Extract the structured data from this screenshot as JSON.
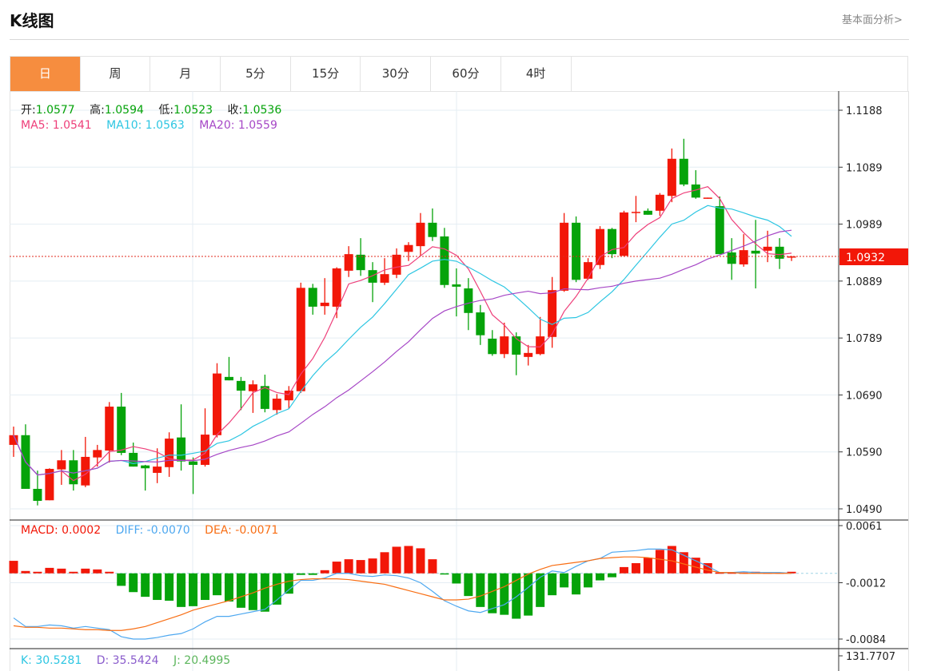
{
  "header": {
    "title": "K线图",
    "link": "基本面分析>"
  },
  "tabs": [
    {
      "label": "日",
      "active": true
    },
    {
      "label": "周"
    },
    {
      "label": "月"
    },
    {
      "label": "5分"
    },
    {
      "label": "15分"
    },
    {
      "label": "30分"
    },
    {
      "label": "60分"
    },
    {
      "label": "4时"
    }
  ],
  "colors": {
    "up": "#f21708",
    "down": "#05a30a",
    "ma5": "#ee3f7a",
    "ma10": "#2dc6e2",
    "ma20": "#a647c6",
    "diff": "#4ea8f0",
    "dea": "#f86e14",
    "accent": "#f68d3f"
  },
  "ohlc_legend": {
    "open_label": "开:",
    "open": "1.0577",
    "high_label": "高:",
    "high": "1.0594",
    "low_label": "低:",
    "low": "1.0523",
    "close_label": "收:",
    "close": "1.0536"
  },
  "ma_legend": {
    "ma5": "MA5: 1.0541",
    "ma10": "MA10: 1.0563",
    "ma20": "MA20: 1.0559"
  },
  "macd_legend": {
    "macd": "MACD: 0.0002",
    "diff": "DIFF: -0.0070",
    "dea": "DEA: -0.0071"
  },
  "kdj_legend": {
    "k": "K: 30.5281",
    "d": "D: 35.5424",
    "j": "J: 20.4995"
  },
  "chart_data": [
    {
      "type": "candlestick",
      "title": "K线图",
      "ylim": [
        1.049,
        1.1188
      ],
      "yticks": [
        "1.1188",
        "1.1089",
        "1.0989",
        "1.0889",
        "1.0789",
        "1.0690",
        "1.0590",
        "1.0490"
      ],
      "current_price": "1.0932",
      "moving_averages": [
        "MA5",
        "MA10",
        "MA20"
      ],
      "ohlc": [
        [
          1.0602,
          1.0634,
          1.0581,
          1.0619
        ],
        [
          1.0619,
          1.0638,
          1.0525,
          1.0525
        ],
        [
          1.0525,
          1.0557,
          1.0496,
          1.0504
        ],
        [
          1.0505,
          1.0561,
          1.0505,
          1.056
        ],
        [
          1.0559,
          1.0593,
          1.0532,
          1.0575
        ],
        [
          1.0575,
          1.0593,
          1.0522,
          1.0533
        ],
        [
          1.0531,
          1.0616,
          1.0528,
          1.0581
        ],
        [
          1.058,
          1.0602,
          1.0564,
          1.0593
        ],
        [
          1.0592,
          1.0677,
          1.0571,
          1.0669
        ],
        [
          1.0669,
          1.0693,
          1.0584,
          1.0588
        ],
        [
          1.0588,
          1.0606,
          1.0564,
          1.0564
        ],
        [
          1.0566,
          1.0567,
          1.0522,
          1.0561
        ],
        [
          1.0553,
          1.0596,
          1.0535,
          1.0564
        ],
        [
          1.0563,
          1.0624,
          1.0546,
          1.0613
        ],
        [
          1.0615,
          1.0673,
          1.0557,
          1.0573
        ],
        [
          1.0573,
          1.058,
          1.0516,
          1.0567
        ],
        [
          1.0567,
          1.0666,
          1.0564,
          1.062
        ],
        [
          1.0619,
          1.0745,
          1.0615,
          1.0727
        ],
        [
          1.0721,
          1.0756,
          1.0715,
          1.0715
        ],
        [
          1.0714,
          1.0721,
          1.0663,
          1.0697
        ],
        [
          1.0696,
          1.0715,
          1.0658,
          1.0708
        ],
        [
          1.0705,
          1.0725,
          1.0659,
          1.0665
        ],
        [
          1.0663,
          1.0691,
          1.0655,
          1.0683
        ],
        [
          1.068,
          1.0705,
          1.0665,
          1.0697
        ],
        [
          1.0696,
          1.0886,
          1.0693,
          1.0877
        ],
        [
          1.0877,
          1.0884,
          1.083,
          1.0844
        ],
        [
          1.0845,
          1.0894,
          1.083,
          1.0851
        ],
        [
          1.0844,
          1.0913,
          1.0824,
          1.0911
        ],
        [
          1.0907,
          1.095,
          1.0896,
          1.0936
        ],
        [
          1.0935,
          1.0964,
          1.0898,
          1.0908
        ],
        [
          1.0908,
          1.0922,
          1.0852,
          1.0886
        ],
        [
          1.0886,
          1.0929,
          1.0882,
          1.0901
        ],
        [
          1.09,
          1.0946,
          1.0894,
          1.0935
        ],
        [
          1.094,
          1.0957,
          1.0924,
          1.0952
        ],
        [
          1.095,
          1.1008,
          1.0933,
          1.0991
        ],
        [
          1.0991,
          1.1016,
          1.0959,
          1.0966
        ],
        [
          1.0967,
          1.0982,
          1.0877,
          1.0882
        ],
        [
          1.0883,
          1.0911,
          1.0827,
          1.0879
        ],
        [
          1.0876,
          1.0894,
          1.0803,
          1.0833
        ],
        [
          1.0834,
          1.0847,
          1.0777,
          1.0794
        ],
        [
          1.0788,
          1.0803,
          1.0758,
          1.0761
        ],
        [
          1.0761,
          1.0816,
          1.0754,
          1.0792
        ],
        [
          1.0792,
          1.0799,
          1.0724,
          1.076
        ],
        [
          1.0756,
          1.0777,
          1.0741,
          1.0763
        ],
        [
          1.0761,
          1.0826,
          1.0759,
          1.0792
        ],
        [
          1.0791,
          1.0896,
          1.0772,
          1.0873
        ],
        [
          1.0872,
          1.1008,
          1.087,
          1.0991
        ],
        [
          1.0991,
          1.1002,
          1.0887,
          1.0891
        ],
        [
          1.0893,
          1.0929,
          1.0891,
          1.0922
        ],
        [
          1.0917,
          1.0985,
          1.091,
          1.098
        ],
        [
          1.098,
          1.0982,
          1.0929,
          1.0936
        ],
        [
          1.0933,
          1.1012,
          1.0933,
          1.1009
        ],
        [
          1.1008,
          1.1038,
          1.0992,
          1.101
        ],
        [
          1.1012,
          1.1016,
          1.1005,
          1.1005
        ],
        [
          1.1012,
          1.1043,
          1.1003,
          1.104
        ],
        [
          1.1038,
          1.1121,
          1.1027,
          1.1103
        ],
        [
          1.1103,
          1.1138,
          1.1055,
          1.1058
        ],
        [
          1.1058,
          1.1083,
          1.1033,
          1.1035
        ],
        [
          1.1034,
          1.1035,
          1.1033,
          1.1035
        ],
        [
          1.102,
          1.1037,
          1.0936,
          1.0936
        ],
        [
          1.0939,
          1.0964,
          1.0891,
          1.0919
        ],
        [
          1.0918,
          1.0971,
          1.0914,
          1.0943
        ],
        [
          1.0942,
          1.0996,
          1.0876,
          1.0937
        ],
        [
          1.0942,
          1.0977,
          1.0922,
          1.0949
        ],
        [
          1.0949,
          1.0964,
          1.091,
          1.0928
        ],
        [
          1.0931,
          1.0933,
          1.0924,
          1.0932
        ]
      ]
    },
    {
      "type": "bar+line",
      "title": "MACD",
      "ylim": [
        -0.0084,
        0.0061
      ],
      "yticks": [
        "0.0061",
        "-0.0012",
        "-0.0084"
      ],
      "macd": [
        0.0016,
        0.0003,
        0.0002,
        0.0007,
        0.0006,
        0.0002,
        0.0006,
        0.0005,
        0.0002,
        -0.0016,
        -0.0024,
        -0.003,
        -0.0034,
        -0.0035,
        -0.0043,
        -0.0042,
        -0.0034,
        -0.0028,
        -0.0036,
        -0.0044,
        -0.0047,
        -0.0049,
        -0.004,
        -0.0026,
        -0.0002,
        -0.0002,
        0.0004,
        0.0015,
        0.0018,
        0.0017,
        0.0019,
        0.0027,
        0.0034,
        0.0035,
        0.0032,
        0.0018,
        -0.0001,
        -0.0013,
        -0.0029,
        -0.0043,
        -0.0051,
        -0.0053,
        -0.0058,
        -0.0054,
        -0.0043,
        -0.0028,
        -0.0018,
        -0.0027,
        -0.0018,
        -0.0009,
        -0.0005,
        0.0008,
        0.0013,
        0.002,
        0.003,
        0.0035,
        0.0027,
        0.002,
        0.0013,
        0.0001,
        0.0001,
        0.0001,
        0.0002,
        0.0001,
        0.0001,
        0.0002
      ],
      "diff": [
        -0.0057,
        -0.0068,
        -0.0068,
        -0.0066,
        -0.0067,
        -0.007,
        -0.0068,
        -0.007,
        -0.0072,
        -0.0081,
        -0.0084,
        -0.0084,
        -0.0082,
        -0.0079,
        -0.0077,
        -0.0071,
        -0.0062,
        -0.0055,
        -0.0055,
        -0.0052,
        -0.0049,
        -0.0046,
        -0.0034,
        -0.0021,
        -0.0009,
        -0.0009,
        -0.0006,
        0.0,
        0.0,
        -0.0003,
        -0.0004,
        -0.0002,
        -0.0003,
        -0.0006,
        -0.0012,
        -0.0023,
        -0.0035,
        -0.0042,
        -0.0048,
        -0.005,
        -0.0045,
        -0.004,
        -0.003,
        -0.0018,
        -0.0005,
        0.0003,
        0.0001,
        0.0009,
        0.0016,
        0.0019,
        0.0027,
        0.0028,
        0.0029,
        0.0031,
        0.0031,
        0.003,
        0.0023,
        0.0016,
        0.0009,
        0.0001,
        0.0001,
        0.0002,
        0.0001,
        0.0001,
        0.0001,
        0.0
      ],
      "dea": [
        -0.0067,
        -0.0069,
        -0.0069,
        -0.007,
        -0.007,
        -0.0071,
        -0.0072,
        -0.0072,
        -0.0073,
        -0.0073,
        -0.0071,
        -0.0068,
        -0.0063,
        -0.0058,
        -0.0053,
        -0.0047,
        -0.0043,
        -0.0039,
        -0.0035,
        -0.003,
        -0.0025,
        -0.0019,
        -0.0014,
        -0.001,
        -0.0008,
        -0.0007,
        -0.0007,
        -0.0007,
        -0.0008,
        -0.001,
        -0.0012,
        -0.0014,
        -0.0018,
        -0.0022,
        -0.0026,
        -0.003,
        -0.0034,
        -0.0034,
        -0.0033,
        -0.0029,
        -0.0023,
        -0.0017,
        -0.0009,
        -0.0001,
        0.0005,
        0.001,
        0.0012,
        0.0014,
        0.0016,
        0.0019,
        0.002,
        0.0021,
        0.0021,
        0.002,
        0.0018,
        0.0016,
        0.0012,
        0.0008,
        0.0004,
        0.0001,
        0.0001,
        0.0,
        0.0,
        0.0,
        0.0,
        0.0
      ]
    },
    {
      "type": "line",
      "title": "KDJ",
      "yticks": [
        "131.7707"
      ]
    }
  ]
}
